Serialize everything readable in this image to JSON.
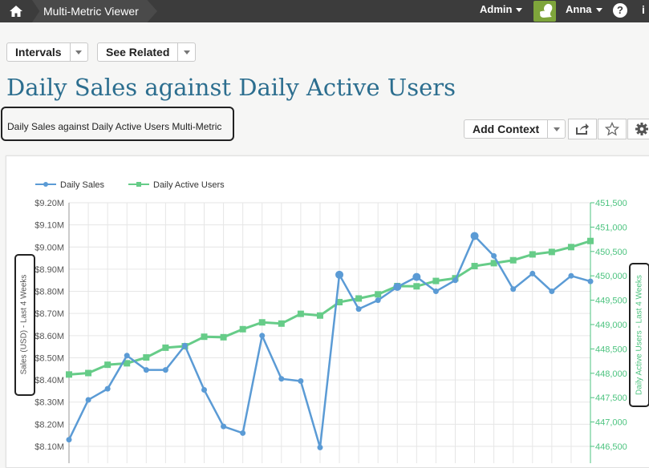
{
  "topbar": {
    "home_icon": "home-icon",
    "breadcrumb": "Multi-Metric Viewer",
    "admin_label": "Admin",
    "user_name": "Anna",
    "help_glyph": "?",
    "info_glyph": "i"
  },
  "toolbar": {
    "intervals_label": "Intervals",
    "see_related_label": "See Related",
    "add_context_label": "Add Context"
  },
  "page": {
    "title": "Daily Sales against Daily Active Users",
    "subtitle": "Daily Sales against Daily Active Users Multi-Metric"
  },
  "colors": {
    "topbar": "#3c3c3c",
    "title": "#2c6e8f",
    "sales": "#5b9bd5",
    "users": "#66cc88",
    "users_axis": "#4cc37f"
  },
  "chart_data": {
    "type": "line",
    "legend_position": "top-left",
    "grid": true,
    "series": [
      {
        "name": "Daily Sales",
        "axis": "left",
        "color": "#5b9bd5",
        "marker": "circle",
        "values": [
          8.13,
          8.31,
          8.36,
          8.51,
          8.445,
          8.445,
          8.555,
          8.355,
          8.19,
          8.16,
          8.6,
          8.405,
          8.395,
          8.095,
          8.875,
          8.72,
          8.76,
          8.82,
          8.865,
          8.8,
          8.85,
          9.05,
          8.96,
          8.81,
          8.88,
          8.8,
          8.87,
          8.845
        ]
      },
      {
        "name": "Daily Active Users",
        "axis": "right",
        "color": "#66cc88",
        "marker": "square",
        "values": [
          447975,
          448005,
          448175,
          448205,
          448325,
          448525,
          448555,
          448750,
          448740,
          448905,
          449045,
          449020,
          449220,
          449185,
          449460,
          449535,
          449620,
          449790,
          449785,
          449895,
          449950,
          450200,
          450260,
          450320,
          450440,
          450490,
          450590,
          450715
        ]
      }
    ],
    "y_left": {
      "label": "Sales (USD) - Last 4 Weeks",
      "ticks": [
        "$8.10M",
        "$8.20M",
        "$8.30M",
        "$8.40M",
        "$8.50M",
        "$8.60M",
        "$8.70M",
        "$8.80M",
        "$8.90M",
        "$9.00M",
        "$9.10M",
        "$9.20M"
      ],
      "ylim": [
        8.1,
        9.2
      ]
    },
    "y_right": {
      "label": "Daily Active Users - Last 4 Weeks",
      "ticks": [
        "446,500",
        "447,000",
        "447,500",
        "448,000",
        "448,500",
        "449,000",
        "449,500",
        "450,000",
        "450,500",
        "451,000",
        "451,500"
      ],
      "ylim": [
        446500,
        451500
      ]
    }
  }
}
